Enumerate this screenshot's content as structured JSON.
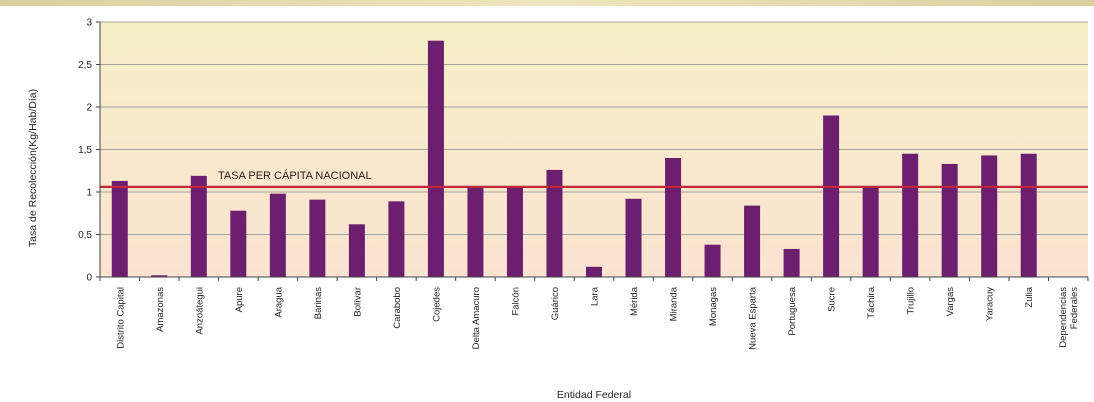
{
  "chart_data": {
    "type": "bar",
    "title": "",
    "xlabel": "Entidad Federal",
    "ylabel": "Tasa de Recolección(Kg/Hab/Día)",
    "ylim": [
      0,
      3
    ],
    "yticks": [
      "0",
      "0,5",
      "1",
      "1,5",
      "2",
      "2,5",
      "3"
    ],
    "grid": true,
    "categories": [
      "Distrito Capital",
      "Amazonas",
      "Anzoátegui",
      "Apure",
      "Aragua",
      "Barinas",
      "Bolívar",
      "Carabobo",
      "Cojedes",
      "Delta Amacuro",
      "Falcón",
      "Guárico",
      "Lara",
      "Mérida",
      "Miranda",
      "Monagas",
      "Nueva Esparta",
      "Portuguesa",
      "Sucre",
      "Táchira",
      "Trujillo",
      "Vargas",
      "Yaracuy",
      "Zulia",
      "Dependencias Federales"
    ],
    "values": [
      1.13,
      0.02,
      1.19,
      0.78,
      0.98,
      0.91,
      0.62,
      0.89,
      2.78,
      1.05,
      1.05,
      1.26,
      0.12,
      0.92,
      1.4,
      0.38,
      0.84,
      0.33,
      1.9,
      1.06,
      1.45,
      1.33,
      1.43,
      1.45,
      0
    ],
    "reference_line": {
      "label": "TASA PER CÁPITA NACIONAL",
      "value": 1.06
    },
    "colors": {
      "bar": "#6b1f6e",
      "reference_line": "#c0283a",
      "plot_top": "#f6efc6",
      "plot_bottom": "#fbe3d2"
    }
  }
}
